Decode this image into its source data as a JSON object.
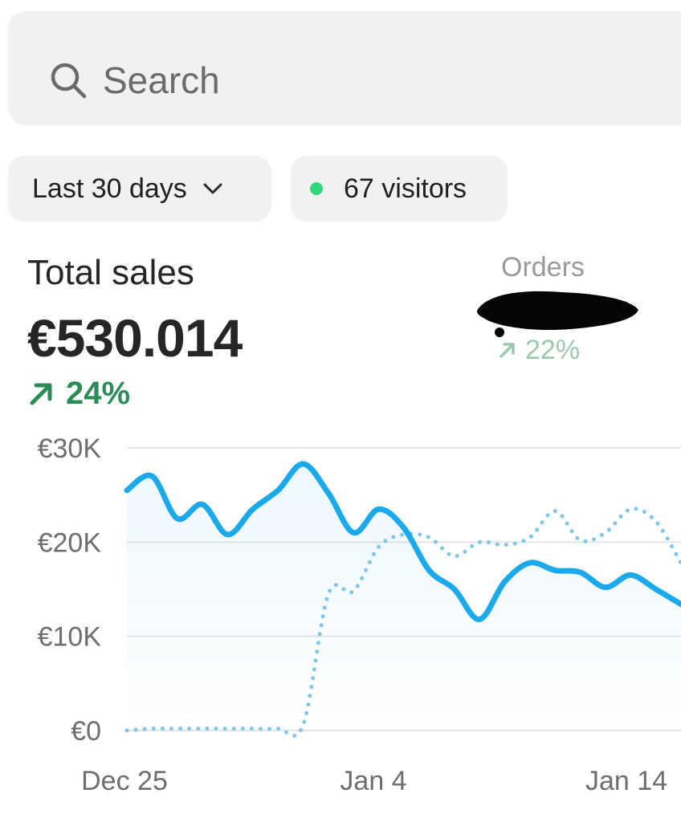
{
  "search": {
    "placeholder": "Search",
    "icon": "search-icon"
  },
  "filters": {
    "date_range": {
      "label": "Last 30 days",
      "icon": "chevron-down-icon"
    },
    "visitors": {
      "label": "67 visitors",
      "status_color": "#2fd97a"
    }
  },
  "total_sales": {
    "title": "Total sales",
    "value": "€530.014",
    "change": "24%",
    "change_color": "#2c8c57"
  },
  "orders": {
    "title": "Orders",
    "change": "22%"
  },
  "colors": {
    "primary_line": "#1aa9ea",
    "comparison_line": "#7fc8ea",
    "grid": "#e4e4e4",
    "axis_text": "#6e6e6e"
  },
  "chart_data": {
    "type": "line",
    "x_ticks": [
      "Dec 25",
      "Jan 4",
      "Jan 14"
    ],
    "y_ticks": [
      "€30K",
      "€20K",
      "€10K",
      "€0"
    ],
    "ylim": [
      0,
      30000
    ],
    "series": [
      {
        "style": "solid",
        "values": [
          25500,
          27000,
          22500,
          24000,
          20800,
          23500,
          25500,
          28300,
          25200,
          21000,
          23500,
          21500,
          17000,
          15000,
          11800,
          15800,
          17800,
          17000,
          16800,
          15200,
          16500,
          15000,
          13400
        ]
      },
      {
        "style": "dotted",
        "values": [
          0,
          200,
          200,
          200,
          200,
          200,
          200,
          600,
          14500,
          14800,
          19500,
          20800,
          20500,
          18500,
          20000,
          19700,
          20500,
          23300,
          20200,
          21000,
          23500,
          22200,
          17800
        ]
      }
    ]
  }
}
